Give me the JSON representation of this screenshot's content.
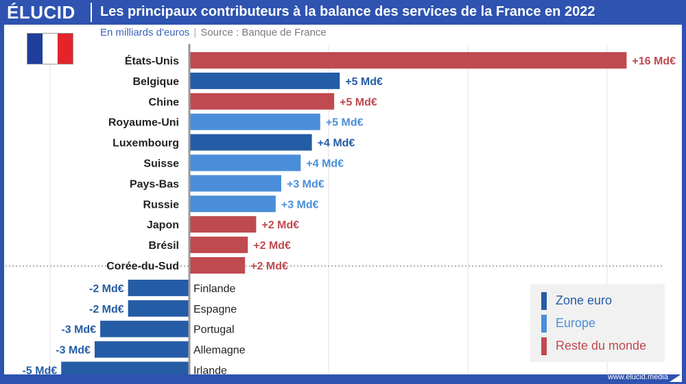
{
  "header": {
    "brand": "ÉLUCID",
    "title": "Les principaux contributeurs à la balance des services de la France en 2022"
  },
  "subtitle": {
    "unit": "En milliards d'euros",
    "source": "Source : Banque de France"
  },
  "colors": {
    "zone_euro": "#255ca6",
    "europe": "#4a8ed9",
    "reste_du_monde": "#bf4a4f",
    "header_bg": "#2e53b0"
  },
  "flag": [
    "#1f3e9b",
    "#ffffff",
    "#e3242b"
  ],
  "legend": [
    {
      "key": "zone_euro",
      "label": "Zone euro"
    },
    {
      "key": "europe",
      "label": "Europe"
    },
    {
      "key": "reste_du_monde",
      "label": "Reste du monde"
    }
  ],
  "chart_data": {
    "type": "bar",
    "orientation": "horizontal",
    "xlim": [
      -7,
      17
    ],
    "categories": [
      "États-Unis",
      "Belgique",
      "Chine",
      "Royaume-Uni",
      "Luxembourg",
      "Suisse",
      "Pays-Bas",
      "Russie",
      "Japon",
      "Brésil",
      "Corée-du-Sud",
      "Finlande",
      "Espagne",
      "Portugal",
      "Allemagne",
      "Irlande"
    ],
    "values": [
      15.7,
      5.4,
      5.2,
      4.7,
      4.4,
      4.0,
      3.3,
      3.1,
      2.4,
      2.1,
      2.0,
      -2.2,
      -2.2,
      -3.2,
      -3.4,
      -4.6
    ],
    "value_labels": [
      "+16 Md€",
      "+5 Md€",
      "+5 Md€",
      "+5 Md€",
      "+4 Md€",
      "+4 Md€",
      "+3 Md€",
      "+3 Md€",
      "+2 Md€",
      "+2 Md€",
      "+2 Md€",
      "-2 Md€",
      "-2 Md€",
      "-3 Md€",
      "-3 Md€",
      "-5 Md€"
    ],
    "groups": [
      "reste_du_monde",
      "zone_euro",
      "reste_du_monde",
      "europe",
      "zone_euro",
      "europe",
      "europe",
      "europe",
      "reste_du_monde",
      "reste_du_monde",
      "reste_du_monde",
      "zone_euro",
      "zone_euro",
      "zone_euro",
      "zone_euro",
      "zone_euro"
    ],
    "legend_position": "bottom-right",
    "grid": true
  },
  "footer": {
    "url": "www.elucid.media"
  }
}
